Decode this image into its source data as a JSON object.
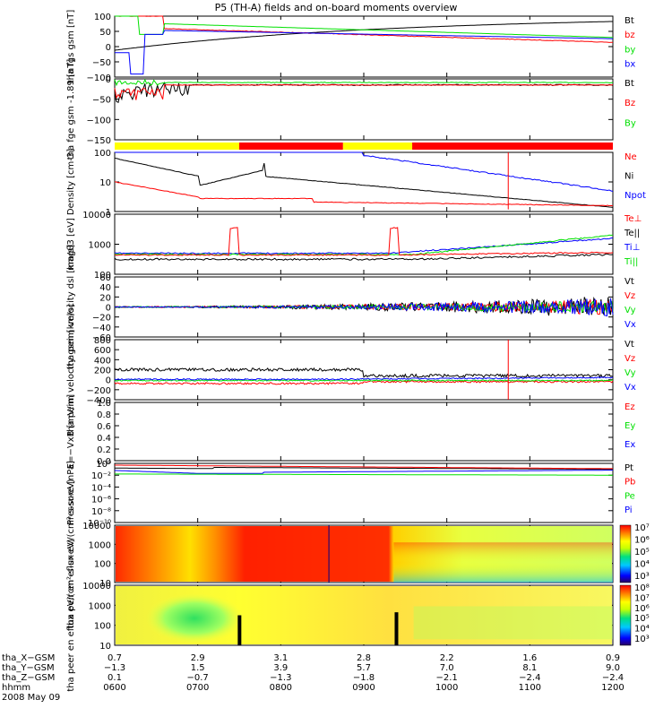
{
  "title": "P5 (TH-A) fields and on-board moments overview",
  "colors": {
    "black": "#000000",
    "red": "#ff0000",
    "green": "#00e000",
    "blue": "#0000ff",
    "yellow": "#ffff00"
  },
  "chart_data": [
    {
      "type": "line",
      "ylabel": "tha fgs gsm [nT]",
      "ylim": [
        -100,
        100
      ],
      "yticks": [
        "100",
        "50",
        "0",
        "−50",
        "−100"
      ],
      "series": [
        {
          "name": "Bt",
          "color": "black"
        },
        {
          "name": "bz",
          "color": "red"
        },
        {
          "name": "by",
          "color": "green"
        },
        {
          "name": "bx",
          "color": "blue"
        }
      ]
    },
    {
      "type": "line",
      "ylabel": "tha fge gsm -1.89 [nT]",
      "ylim": [
        -180,
        20
      ],
      "yticks": [
        "0",
        "−50",
        "−100",
        "−150"
      ],
      "series": [
        {
          "name": "Bt",
          "color": "black"
        },
        {
          "name": "Bz",
          "color": "red"
        },
        {
          "name": "By",
          "color": "green"
        }
      ]
    },
    {
      "type": "bar",
      "name": "mode bar",
      "segments": [
        {
          "from": "0600",
          "to": "0730",
          "color": "yellow"
        },
        {
          "from": "0730",
          "to": "0845",
          "color": "red"
        },
        {
          "from": "0845",
          "to": "0935",
          "color": "yellow"
        },
        {
          "from": "0935",
          "to": "1200",
          "color": "red"
        }
      ]
    },
    {
      "type": "line",
      "ylabel": "Density [cm-3]",
      "scale": "log",
      "ylim": [
        0.5,
        200
      ],
      "yticks": [
        "100",
        "10",
        "1"
      ],
      "series": [
        {
          "name": "Ne",
          "color": "red"
        },
        {
          "name": "Ni",
          "color": "black"
        },
        {
          "name": "Npot",
          "color": "blue"
        }
      ]
    },
    {
      "type": "line",
      "ylabel": "magθ3 [eV]",
      "scale": "log",
      "ylim": [
        50,
        20000
      ],
      "yticks": [
        "10000",
        "1000",
        "100"
      ],
      "series": [
        {
          "name": "Te⊥",
          "color": "red"
        },
        {
          "name": "Te||",
          "color": "black"
        },
        {
          "name": "Ti⊥",
          "color": "blue"
        },
        {
          "name": "Ti||",
          "color": "green"
        }
      ]
    },
    {
      "type": "line",
      "ylabel": "tha peim velocity dsl [km/s]",
      "ylim": [
        -60,
        60
      ],
      "yticks": [
        "60",
        "40",
        "20",
        "0",
        "−20",
        "−40",
        "−60"
      ],
      "series": [
        {
          "name": "Vt",
          "color": "black"
        },
        {
          "name": "Vz",
          "color": "red"
        },
        {
          "name": "Vy",
          "color": "green"
        },
        {
          "name": "Vx",
          "color": "blue"
        }
      ]
    },
    {
      "type": "line",
      "ylabel": "tha peim velocity gsm [km/s]",
      "ylim": [
        -400,
        800
      ],
      "yticks": [
        "800",
        "600",
        "400",
        "200",
        "0",
        "−200",
        "−400"
      ],
      "series": [
        {
          "name": "Vt",
          "color": "black"
        },
        {
          "name": "Vz",
          "color": "red"
        },
        {
          "name": "Vy",
          "color": "green"
        },
        {
          "name": "Vx",
          "color": "blue"
        }
      ]
    },
    {
      "type": "line",
      "ylabel": "E=−VxB [mV/m]",
      "ylim": [
        0,
        1
      ],
      "yticks": [
        "1.0",
        "0.8",
        "0.6",
        "0.4",
        "0.2",
        "0.0"
      ],
      "series": [
        {
          "name": "Ez",
          "color": "red"
        },
        {
          "name": "Ey",
          "color": "green"
        },
        {
          "name": "Ex",
          "color": "blue"
        }
      ]
    },
    {
      "type": "line",
      "ylabel": "Pressure [nPa]",
      "scale": "log",
      "ylim": [
        1e-10,
        10
      ],
      "yticks": [
        "10⁰",
        "10⁻²",
        "10⁻⁴",
        "10⁻⁶",
        "10⁻⁸",
        "10⁻¹⁰"
      ],
      "series": [
        {
          "name": "Pt",
          "color": "black"
        },
        {
          "name": "Pb",
          "color": "red"
        },
        {
          "name": "Pe",
          "color": "green"
        },
        {
          "name": "Pi",
          "color": "blue"
        }
      ]
    },
    {
      "type": "heatmap",
      "ylabel": "tha peir en eflux eV/(cm²-s-sr-eV)",
      "scale": "log",
      "ylim": [
        10,
        15000
      ],
      "yticks": [
        "10000",
        "1000",
        "100",
        "10"
      ],
      "colorbar": [
        "10⁷",
        "10⁶",
        "10⁵",
        "10⁴",
        "10³"
      ]
    },
    {
      "type": "heatmap",
      "ylabel": "tha peer en eflux eV/(cm²-s-sr-eV)",
      "scale": "log",
      "ylim": [
        10,
        15000
      ],
      "yticks": [
        "10000",
        "1000",
        "100",
        "10"
      ],
      "colorbar": [
        "10⁸",
        "10⁷",
        "10⁶",
        "10⁵",
        "10⁴",
        "10³"
      ]
    }
  ],
  "xaxis": {
    "rows": [
      {
        "label": "tha_X−GSM",
        "values": [
          "0.7",
          "2.9",
          "3.1",
          "2.8",
          "2.2",
          "1.6",
          "0.9"
        ]
      },
      {
        "label": "tha_Y−GSM",
        "values": [
          "−1.3",
          "1.5",
          "3.9",
          "5.7",
          "7.0",
          "8.1",
          "9.0"
        ]
      },
      {
        "label": "tha_Z−GSM",
        "values": [
          "0.1",
          "−0.7",
          "−1.3",
          "−1.8",
          "−2.1",
          "−2.4",
          "−2.4"
        ]
      },
      {
        "label": "hhmm",
        "values": [
          "0600",
          "0700",
          "0800",
          "0900",
          "1000",
          "1100",
          "1200"
        ]
      }
    ],
    "date": "2008 May 09"
  }
}
